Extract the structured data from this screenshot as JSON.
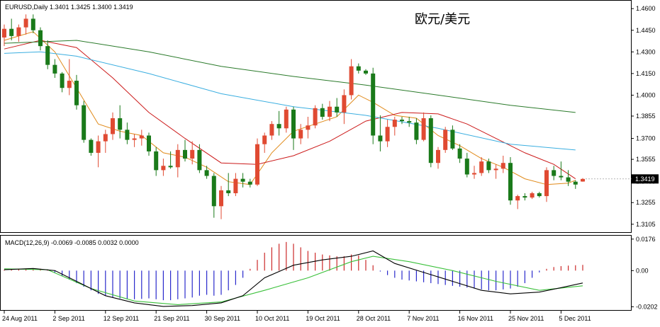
{
  "header": {
    "symbol_info": "EURUSD,Daily  1.3401 1.3425 1.3400 1.3419",
    "title": "欧元/美元"
  },
  "macd_panel": {
    "info": "MACD(12,26,9) -0.0069 -0.0085 0.0032 0.0000"
  },
  "current_price": {
    "label": "1.3419",
    "value": 1.3419
  },
  "colors": {
    "bull": "#e04a32",
    "bear": "#1a7a1a",
    "ma_fast": "#e08a1a",
    "ma_mid": "#cc1a1a",
    "ma_slow1": "#3aaee0",
    "ma_slow2": "#2a7a2a",
    "macd_pos": "#cc2a2a",
    "macd_neg": "#2a2acc",
    "macd_line": "#000000",
    "signal_line": "#3ac03a"
  },
  "chart_data": [
    {
      "type": "candlestick",
      "title": "欧元/美元",
      "symbol": "EURUSD",
      "timeframe": "Daily",
      "ylim": [
        1.305,
        1.465
      ],
      "yticks": [
        "1.4600",
        "1.4450",
        "1.4300",
        "1.4150",
        "1.4000",
        "1.3855",
        "1.3700",
        "1.3555",
        "1.3400",
        "1.3255",
        "1.3105"
      ],
      "xticks": [
        {
          "label": "24 Aug 2011",
          "index": 0
        },
        {
          "label": "2 Sep 2011",
          "index": 7
        },
        {
          "label": "12 Sep 2011",
          "index": 14
        },
        {
          "label": "21 Sep 2011",
          "index": 21
        },
        {
          "label": "30 Sep 2011",
          "index": 28
        },
        {
          "label": "10 Oct 2011",
          "index": 35
        },
        {
          "label": "19 Oct 2011",
          "index": 42
        },
        {
          "label": "28 Oct 2011",
          "index": 49
        },
        {
          "label": "7 Nov 2011",
          "index": 56
        },
        {
          "label": "16 Nov 2011",
          "index": 63
        },
        {
          "label": "25 Nov 2011",
          "index": 70
        },
        {
          "label": "5 Dec 2011",
          "index": 77
        }
      ],
      "ohlc": [
        [
          1.44,
          1.449,
          1.434,
          1.446
        ],
        [
          1.446,
          1.453,
          1.438,
          1.441
        ],
        [
          1.441,
          1.449,
          1.437,
          1.447
        ],
        [
          1.447,
          1.456,
          1.442,
          1.453
        ],
        [
          1.453,
          1.456,
          1.443,
          1.445
        ],
        [
          1.445,
          1.447,
          1.431,
          1.434
        ],
        [
          1.434,
          1.438,
          1.418,
          1.421
        ],
        [
          1.421,
          1.425,
          1.412,
          1.415
        ],
        [
          1.415,
          1.416,
          1.402,
          1.405
        ],
        [
          1.405,
          1.425,
          1.4,
          1.41
        ],
        [
          1.41,
          1.414,
          1.39,
          1.393
        ],
        [
          1.393,
          1.396,
          1.367,
          1.369
        ],
        [
          1.369,
          1.37,
          1.358,
          1.36
        ],
        [
          1.36,
          1.372,
          1.35,
          1.368
        ],
        [
          1.368,
          1.376,
          1.36,
          1.373
        ],
        [
          1.373,
          1.388,
          1.369,
          1.384
        ],
        [
          1.384,
          1.393,
          1.37,
          1.376
        ],
        [
          1.376,
          1.381,
          1.366,
          1.369
        ],
        [
          1.369,
          1.373,
          1.364,
          1.37
        ],
        [
          1.37,
          1.376,
          1.365,
          1.372
        ],
        [
          1.372,
          1.374,
          1.358,
          1.361
        ],
        [
          1.361,
          1.364,
          1.344,
          1.348
        ],
        [
          1.348,
          1.356,
          1.344,
          1.351
        ],
        [
          1.351,
          1.361,
          1.349,
          1.35
        ],
        [
          1.35,
          1.366,
          1.343,
          1.362
        ],
        [
          1.362,
          1.369,
          1.354,
          1.356
        ],
        [
          1.356,
          1.368,
          1.352,
          1.362
        ],
        [
          1.362,
          1.366,
          1.346,
          1.348
        ],
        [
          1.348,
          1.351,
          1.342,
          1.344
        ],
        [
          1.344,
          1.346,
          1.315,
          1.323
        ],
        [
          1.323,
          1.337,
          1.314,
          1.334
        ],
        [
          1.334,
          1.346,
          1.33,
          1.332
        ],
        [
          1.332,
          1.346,
          1.33,
          1.342
        ],
        [
          1.342,
          1.346,
          1.336,
          1.34
        ],
        [
          1.34,
          1.342,
          1.336,
          1.338
        ],
        [
          1.338,
          1.37,
          1.337,
          1.366
        ],
        [
          1.366,
          1.374,
          1.36,
          1.372
        ],
        [
          1.372,
          1.382,
          1.369,
          1.38
        ],
        [
          1.38,
          1.389,
          1.372,
          1.377
        ],
        [
          1.377,
          1.392,
          1.374,
          1.39
        ],
        [
          1.39,
          1.392,
          1.362,
          1.37
        ],
        [
          1.37,
          1.38,
          1.366,
          1.376
        ],
        [
          1.376,
          1.385,
          1.37,
          1.379
        ],
        [
          1.379,
          1.393,
          1.377,
          1.391
        ],
        [
          1.391,
          1.394,
          1.383,
          1.385
        ],
        [
          1.385,
          1.396,
          1.382,
          1.392
        ],
        [
          1.392,
          1.398,
          1.385,
          1.388
        ],
        [
          1.388,
          1.404,
          1.38,
          1.4
        ],
        [
          1.4,
          1.425,
          1.397,
          1.42
        ],
        [
          1.42,
          1.422,
          1.415,
          1.417
        ],
        [
          1.417,
          1.418,
          1.414,
          1.415
        ],
        [
          1.415,
          1.419,
          1.366,
          1.372
        ],
        [
          1.372,
          1.386,
          1.361,
          1.368
        ],
        [
          1.368,
          1.383,
          1.364,
          1.378
        ],
        [
          1.378,
          1.385,
          1.372,
          1.383
        ],
        [
          1.383,
          1.385,
          1.38,
          1.382
        ],
        [
          1.382,
          1.385,
          1.378,
          1.381
        ],
        [
          1.381,
          1.384,
          1.366,
          1.369
        ],
        [
          1.369,
          1.388,
          1.368,
          1.384
        ],
        [
          1.384,
          1.386,
          1.35,
          1.353
        ],
        [
          1.353,
          1.364,
          1.349,
          1.362
        ],
        [
          1.362,
          1.378,
          1.36,
          1.376
        ],
        [
          1.376,
          1.379,
          1.362,
          1.363
        ],
        [
          1.363,
          1.366,
          1.353,
          1.356
        ],
        [
          1.356,
          1.36,
          1.343,
          1.345
        ],
        [
          1.345,
          1.351,
          1.342,
          1.346
        ],
        [
          1.346,
          1.357,
          1.344,
          1.354
        ],
        [
          1.354,
          1.356,
          1.346,
          1.348
        ],
        [
          1.348,
          1.352,
          1.342,
          1.349
        ],
        [
          1.349,
          1.358,
          1.346,
          1.353
        ],
        [
          1.353,
          1.357,
          1.324,
          1.327
        ],
        [
          1.327,
          1.331,
          1.321,
          1.33
        ],
        [
          1.33,
          1.332,
          1.327,
          1.329
        ],
        [
          1.329,
          1.333,
          1.328,
          1.332
        ],
        [
          1.332,
          1.333,
          1.329,
          1.33
        ],
        [
          1.33,
          1.35,
          1.326,
          1.348
        ],
        [
          1.348,
          1.351,
          1.341,
          1.344
        ],
        [
          1.344,
          1.354,
          1.341,
          1.343
        ],
        [
          1.343,
          1.348,
          1.337,
          1.34
        ],
        [
          1.34,
          1.341,
          1.335,
          1.338
        ],
        [
          1.3401,
          1.3425,
          1.34,
          1.3419
        ]
      ],
      "moving_averages": [
        {
          "color_key": "ma_fast",
          "points": [
            [
              0,
              1.438
            ],
            [
              4,
              1.444
            ],
            [
              7,
              1.43
            ],
            [
              10,
              1.405
            ],
            [
              13,
              1.38
            ],
            [
              16,
              1.375
            ],
            [
              19,
              1.372
            ],
            [
              22,
              1.36
            ],
            [
              25,
              1.357
            ],
            [
              28,
              1.35
            ],
            [
              31,
              1.34
            ],
            [
              34,
              1.338
            ],
            [
              37,
              1.36
            ],
            [
              40,
              1.375
            ],
            [
              43,
              1.38
            ],
            [
              46,
              1.385
            ],
            [
              49,
              1.4
            ],
            [
              51,
              1.395
            ],
            [
              54,
              1.386
            ],
            [
              57,
              1.384
            ],
            [
              60,
              1.372
            ],
            [
              63,
              1.365
            ],
            [
              66,
              1.356
            ],
            [
              69,
              1.35
            ],
            [
              72,
              1.342
            ],
            [
              75,
              1.338
            ],
            [
              78,
              1.339
            ],
            [
              79,
              1.341
            ]
          ]
        },
        {
          "color_key": "ma_mid",
          "points": [
            [
              0,
              1.432
            ],
            [
              5,
              1.438
            ],
            [
              10,
              1.433
            ],
            [
              15,
              1.412
            ],
            [
              20,
              1.388
            ],
            [
              25,
              1.37
            ],
            [
              30,
              1.353
            ],
            [
              35,
              1.352
            ],
            [
              40,
              1.358
            ],
            [
              45,
              1.368
            ],
            [
              50,
              1.382
            ],
            [
              55,
              1.388
            ],
            [
              60,
              1.387
            ],
            [
              64,
              1.38
            ],
            [
              68,
              1.37
            ],
            [
              72,
              1.36
            ],
            [
              76,
              1.352
            ],
            [
              79,
              1.342
            ]
          ]
        },
        {
          "color_key": "ma_slow1",
          "points": [
            [
              0,
              1.429
            ],
            [
              5,
              1.43
            ],
            [
              10,
              1.427
            ],
            [
              20,
              1.415
            ],
            [
              30,
              1.401
            ],
            [
              40,
              1.392
            ],
            [
              50,
              1.386
            ],
            [
              60,
              1.377
            ],
            [
              70,
              1.366
            ],
            [
              79,
              1.362
            ]
          ]
        },
        {
          "color_key": "ma_slow2",
          "points": [
            [
              0,
              1.436
            ],
            [
              10,
              1.438
            ],
            [
              20,
              1.43
            ],
            [
              30,
              1.42
            ],
            [
              40,
              1.413
            ],
            [
              50,
              1.407
            ],
            [
              60,
              1.4
            ],
            [
              70,
              1.393
            ],
            [
              79,
              1.388
            ]
          ]
        }
      ]
    },
    {
      "type": "macd",
      "title": "MACD(12,26,9)",
      "params": [
        12,
        26,
        9
      ],
      "values": {
        "macd": -0.0069,
        "signal": -0.0085,
        "histogram": 0.0032,
        "zero": 0.0
      },
      "ylim": [
        -0.022,
        0.0195
      ],
      "yticks": [
        "0.0176",
        "0.00",
        "-0.0202"
      ],
      "histogram": [
        0.0005,
        0.0008,
        0.001,
        0.0012,
        0.0013,
        0.001,
        0.0005,
        -0.001,
        -0.003,
        -0.005,
        -0.007,
        -0.009,
        -0.011,
        -0.013,
        -0.014,
        -0.015,
        -0.0155,
        -0.016,
        -0.016,
        -0.0158,
        -0.0155,
        -0.016,
        -0.0165,
        -0.0165,
        -0.016,
        -0.0155,
        -0.015,
        -0.014,
        -0.0135,
        -0.014,
        -0.0135,
        -0.011,
        -0.008,
        -0.004,
        0.001,
        0.006,
        0.01,
        0.013,
        0.015,
        0.016,
        0.015,
        0.013,
        0.011,
        0.01,
        0.009,
        0.0085,
        0.008,
        0.008,
        0.009,
        0.0085,
        0.006,
        0.003,
        -0.0005,
        -0.0025,
        -0.004,
        -0.005,
        -0.0055,
        -0.006,
        -0.0065,
        -0.007,
        -0.0075,
        -0.008,
        -0.0085,
        -0.009,
        -0.0095,
        -0.01,
        -0.0105,
        -0.011,
        -0.011,
        -0.0105,
        -0.01,
        -0.009,
        -0.007,
        -0.004,
        -0.001,
        0.001,
        0.002,
        0.0025,
        0.0028,
        0.003,
        0.0032
      ],
      "macd_line": [
        [
          0,
          0.0005
        ],
        [
          4,
          0.0012
        ],
        [
          7,
          0.0
        ],
        [
          10,
          -0.006
        ],
        [
          14,
          -0.014
        ],
        [
          18,
          -0.018
        ],
        [
          22,
          -0.02
        ],
        [
          26,
          -0.0195
        ],
        [
          30,
          -0.018
        ],
        [
          33,
          -0.014
        ],
        [
          36,
          -0.004
        ],
        [
          40,
          0.003
        ],
        [
          44,
          0.006
        ],
        [
          48,
          0.008
        ],
        [
          51,
          0.011
        ],
        [
          54,
          0.004
        ],
        [
          58,
          -0.001
        ],
        [
          62,
          -0.006
        ],
        [
          66,
          -0.011
        ],
        [
          70,
          -0.013
        ],
        [
          74,
          -0.012
        ],
        [
          77,
          -0.0095
        ],
        [
          80,
          -0.0069
        ]
      ],
      "signal_line": [
        [
          0,
          0.001
        ],
        [
          6,
          0.0005
        ],
        [
          12,
          -0.01
        ],
        [
          18,
          -0.017
        ],
        [
          24,
          -0.019
        ],
        [
          30,
          -0.0175
        ],
        [
          36,
          -0.011
        ],
        [
          42,
          -0.004
        ],
        [
          48,
          0.005
        ],
        [
          51,
          0.008
        ],
        [
          56,
          0.005
        ],
        [
          62,
          0.0
        ],
        [
          68,
          -0.006
        ],
        [
          74,
          -0.011
        ],
        [
          80,
          -0.0085
        ]
      ]
    }
  ]
}
